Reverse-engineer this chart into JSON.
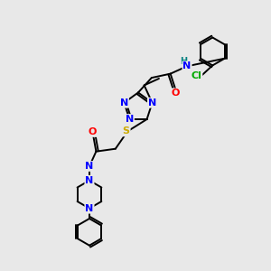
{
  "background_color": "#e8e8e8",
  "figsize": [
    3.0,
    3.0
  ],
  "dpi": 100,
  "atom_colors": {
    "N": "#0000ff",
    "O": "#ff0000",
    "S": "#ccaa00",
    "Cl": "#00aa00",
    "H": "#008080",
    "C": "#000000"
  },
  "bond_color": "#000000",
  "bond_width": 1.4
}
